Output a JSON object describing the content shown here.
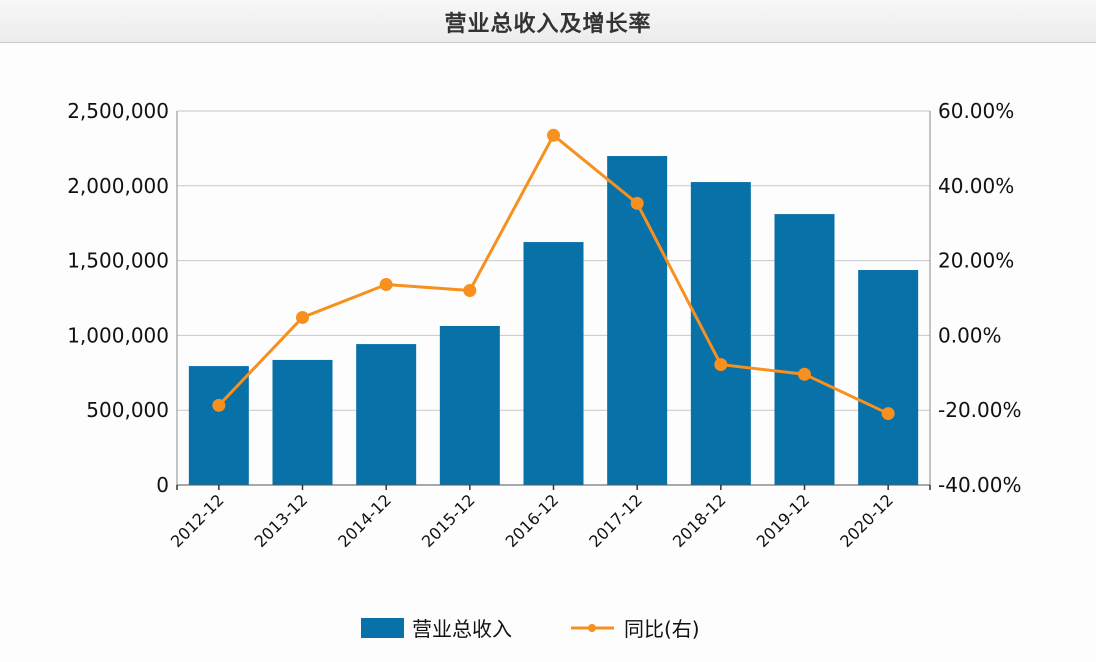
{
  "header": {
    "title": "营业总收入及增长率"
  },
  "legend": {
    "bar_label": "营业总收入",
    "line_label": "同比(右)"
  },
  "colors": {
    "bar": "#0871a8",
    "line": "#f7901e",
    "grid": "#c8c8cc",
    "axis": "#8a8a8a"
  },
  "axes": {
    "left_ticks": [
      "2,500,000",
      "2,000,000",
      "1,500,000",
      "1,000,000",
      "500,000",
      "0"
    ],
    "right_ticks": [
      "60.00%",
      "40.00%",
      "20.00%",
      "0.00%",
      "-20.00%",
      "-40.00%"
    ],
    "x_ticks": [
      "2012-12",
      "2013-12",
      "2014-12",
      "2015-12",
      "2016-12",
      "2017-12",
      "2018-12",
      "2019-12",
      "2020-12"
    ]
  },
  "chart_data": {
    "type": "bar+line",
    "title": "营业总收入及增长率",
    "categories": [
      "2012-12",
      "2013-12",
      "2014-12",
      "2015-12",
      "2016-12",
      "2017-12",
      "2018-12",
      "2019-12",
      "2020-12"
    ],
    "series": [
      {
        "name": "营业总收入",
        "type": "bar",
        "axis": "left",
        "values": [
          795000,
          836000,
          942000,
          1063000,
          1624000,
          2199000,
          2025000,
          1811000,
          1437000
        ]
      },
      {
        "name": "同比(右)",
        "type": "line",
        "axis": "right",
        "unit": "%",
        "values": [
          -18.7,
          4.8,
          13.6,
          12.0,
          53.5,
          35.3,
          -7.8,
          -10.4,
          -20.9
        ]
      }
    ],
    "xlabel": "",
    "ylabel_left": "",
    "ylabel_right": "",
    "ylim_left": [
      0,
      2500000
    ],
    "ylim_right": [
      -40,
      60
    ],
    "grid": true,
    "legend_position": "bottom"
  }
}
